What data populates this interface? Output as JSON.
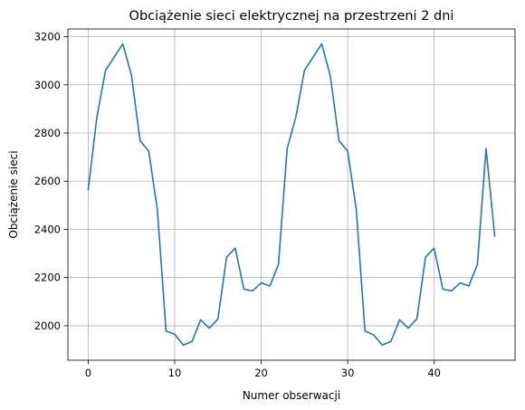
{
  "chart_data": {
    "type": "line",
    "title": "Obciążenie sieci elektrycznej na przestrzeni 2 dni",
    "xlabel": "Numer obserwacji",
    "ylabel": "Obciążenie sieci",
    "xlim": [
      -2.35,
      49.35
    ],
    "ylim": [
      1857,
      3232
    ],
    "xticks": [
      0,
      10,
      20,
      30,
      40
    ],
    "yticks": [
      2000,
      2200,
      2400,
      2600,
      2800,
      3000,
      3200
    ],
    "grid": true,
    "line_color": "#1f77b4",
    "series": [
      {
        "x": [
          0,
          1,
          2,
          3,
          4,
          5,
          6,
          7,
          8,
          9,
          10,
          11,
          12,
          13,
          14,
          15,
          16,
          17,
          18,
          19,
          20,
          21,
          22,
          23,
          24,
          25,
          26,
          27,
          28,
          29,
          30,
          31,
          32,
          33,
          34,
          35,
          36,
          37,
          38,
          39,
          40,
          41,
          42,
          43,
          44,
          45,
          46,
          47
        ],
        "values": [
          2565,
          2865,
          3060,
          3115,
          3170,
          3040,
          2768,
          2725,
          2480,
          1978,
          1965,
          1920,
          1935,
          2025,
          1990,
          2028,
          2285,
          2322,
          2152,
          2145,
          2178,
          2165,
          2255,
          2735,
          2865,
          3060,
          3115,
          3170,
          3035,
          2768,
          2725,
          2480,
          1978,
          1962,
          1920,
          1935,
          2025,
          1990,
          2028,
          2285,
          2322,
          2152,
          2145,
          2178,
          2165,
          2255,
          2735,
          2372
        ]
      }
    ]
  }
}
